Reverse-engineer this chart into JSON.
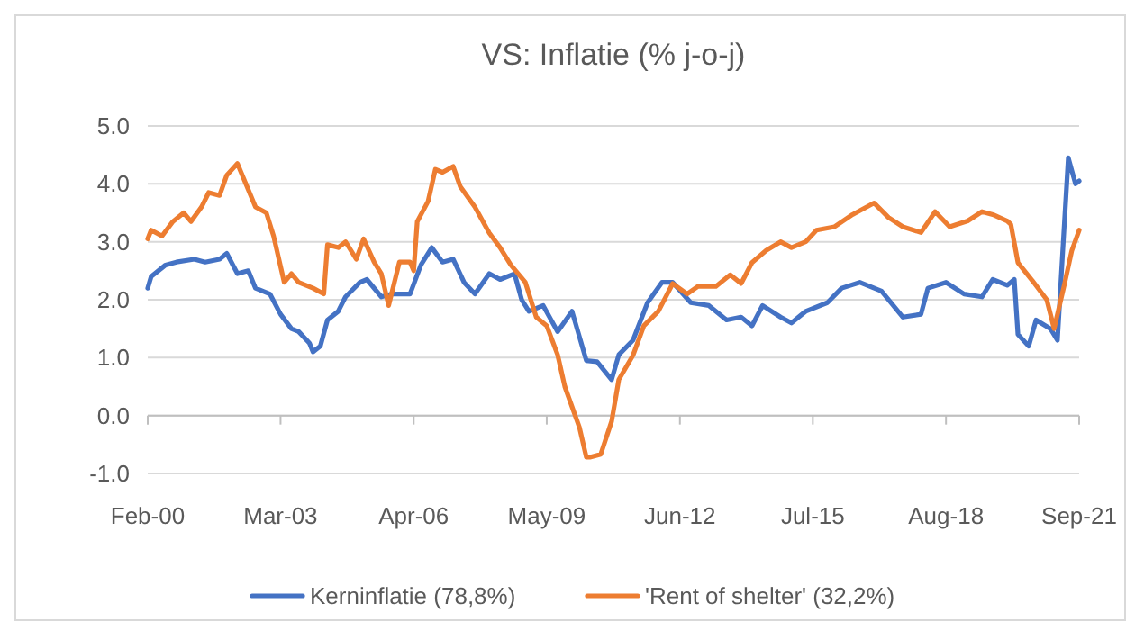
{
  "chart_data": {
    "type": "line",
    "title": "VS: Inflatie (% j-o-j)",
    "xlim": [
      "2000-02",
      "2021-09"
    ],
    "xticks": [
      {
        "value": "2000-02",
        "label": "Feb-00"
      },
      {
        "value": "2003-03",
        "label": "Mar-03"
      },
      {
        "value": "2006-04",
        "label": "Apr-06"
      },
      {
        "value": "2009-05",
        "label": "May-09"
      },
      {
        "value": "2012-06",
        "label": "Jun-12"
      },
      {
        "value": "2015-07",
        "label": "Jul-15"
      },
      {
        "value": "2018-08",
        "label": "Aug-18"
      },
      {
        "value": "2021-09",
        "label": "Sep-21"
      }
    ],
    "ylim": [
      -1,
      5
    ],
    "yticks": [
      {
        "value": -1,
        "label": "-1.0"
      },
      {
        "value": 0,
        "label": "0.0"
      },
      {
        "value": 1,
        "label": "1.0"
      },
      {
        "value": 2,
        "label": "2.0"
      },
      {
        "value": 3,
        "label": "3.0"
      },
      {
        "value": 4,
        "label": "4.0"
      },
      {
        "value": 5,
        "label": "5.0"
      }
    ],
    "grid": "y",
    "legend": "bottom",
    "marker": "none",
    "line_style": "solid",
    "series": [
      {
        "name": "Kerninflatie (78,8%)",
        "color": "#4472c4",
        "x": [
          "2000-02",
          "2000-03",
          "2000-07",
          "2000-10",
          "2001-03",
          "2001-06",
          "2001-10",
          "2001-12",
          "2002-03",
          "2002-06",
          "2002-08",
          "2002-12",
          "2003-03",
          "2003-06",
          "2003-08",
          "2003-11",
          "2003-12",
          "2004-02",
          "2004-04",
          "2004-07",
          "2004-09",
          "2005-01",
          "2005-03",
          "2005-07",
          "2005-10",
          "2006-03",
          "2006-06",
          "2006-09",
          "2006-12",
          "2007-03",
          "2007-06",
          "2007-09",
          "2008-01",
          "2008-04",
          "2008-08",
          "2008-10",
          "2008-12",
          "2009-04",
          "2009-08",
          "2009-12",
          "2010-04",
          "2010-07",
          "2010-11",
          "2011-01",
          "2011-05",
          "2011-09",
          "2012-01",
          "2012-04",
          "2012-09",
          "2013-02",
          "2013-07",
          "2013-11",
          "2014-02",
          "2014-05",
          "2014-10",
          "2015-01",
          "2015-05",
          "2015-11",
          "2016-03",
          "2016-08",
          "2017-02",
          "2017-08",
          "2018-01",
          "2018-03",
          "2018-08",
          "2019-01",
          "2019-06",
          "2019-09",
          "2020-01",
          "2020-03",
          "2020-04",
          "2020-07",
          "2020-09",
          "2021-01",
          "2021-03",
          "2021-06",
          "2021-08",
          "2021-09"
        ],
        "values": [
          2.2,
          2.4,
          2.6,
          2.65,
          2.7,
          2.65,
          2.7,
          2.8,
          2.45,
          2.5,
          2.2,
          2.1,
          1.75,
          1.5,
          1.45,
          1.25,
          1.1,
          1.2,
          1.65,
          1.8,
          2.05,
          2.3,
          2.35,
          2.05,
          2.1,
          2.1,
          2.6,
          2.9,
          2.65,
          2.7,
          2.3,
          2.1,
          2.45,
          2.35,
          2.45,
          2.0,
          1.8,
          1.9,
          1.45,
          1.8,
          0.95,
          0.93,
          0.62,
          1.05,
          1.3,
          1.95,
          2.3,
          2.3,
          1.95,
          1.9,
          1.65,
          1.7,
          1.55,
          1.9,
          1.7,
          1.6,
          1.8,
          1.95,
          2.2,
          2.3,
          2.15,
          1.7,
          1.75,
          2.2,
          2.3,
          2.1,
          2.05,
          2.35,
          2.25,
          2.35,
          1.4,
          1.2,
          1.65,
          1.5,
          1.3,
          4.45,
          4.0,
          4.05
        ]
      },
      {
        "name": "'Rent of shelter' (32,2%)",
        "color": "#ed7d31",
        "x": [
          "2000-02",
          "2000-03",
          "2000-06",
          "2000-09",
          "2000-12",
          "2001-02",
          "2001-05",
          "2001-07",
          "2001-10",
          "2001-12",
          "2002-03",
          "2002-05",
          "2002-08",
          "2002-11",
          "2003-01",
          "2003-04",
          "2003-06",
          "2003-08",
          "2003-12",
          "2004-03",
          "2004-04",
          "2004-07",
          "2004-09",
          "2004-12",
          "2005-02",
          "2005-05",
          "2005-07",
          "2005-09",
          "2005-12",
          "2006-03",
          "2006-04",
          "2006-05",
          "2006-08",
          "2006-10",
          "2006-12",
          "2007-03",
          "2007-05",
          "2007-09",
          "2008-01",
          "2008-04",
          "2008-07",
          "2008-11",
          "2009-02",
          "2009-05",
          "2009-08",
          "2009-10",
          "2010-02",
          "2010-04",
          "2010-05",
          "2010-08",
          "2010-11",
          "2011-01",
          "2011-05",
          "2011-08",
          "2011-12",
          "2012-04",
          "2012-08",
          "2012-11",
          "2013-04",
          "2013-08",
          "2013-11",
          "2014-02",
          "2014-06",
          "2014-10",
          "2015-01",
          "2015-05",
          "2015-08",
          "2016-01",
          "2016-06",
          "2016-12",
          "2017-04",
          "2017-08",
          "2018-01",
          "2018-05",
          "2018-09",
          "2019-02",
          "2019-06",
          "2019-09",
          "2020-01",
          "2020-02",
          "2020-04",
          "2020-08",
          "2020-12",
          "2021-02",
          "2021-05",
          "2021-07",
          "2021-09"
        ],
        "values": [
          3.05,
          3.2,
          3.1,
          3.35,
          3.5,
          3.35,
          3.6,
          3.85,
          3.8,
          4.15,
          4.35,
          4.05,
          3.6,
          3.5,
          3.1,
          2.3,
          2.45,
          2.3,
          2.2,
          2.1,
          2.95,
          2.9,
          3.0,
          2.7,
          3.05,
          2.65,
          2.45,
          1.9,
          2.65,
          2.65,
          2.5,
          3.35,
          3.7,
          4.25,
          4.2,
          4.3,
          3.95,
          3.6,
          3.15,
          2.9,
          2.6,
          2.3,
          1.7,
          1.55,
          1.05,
          0.5,
          -0.2,
          -0.72,
          -0.72,
          -0.67,
          -0.1,
          0.62,
          1.04,
          1.55,
          1.8,
          2.28,
          2.1,
          2.23,
          2.23,
          2.43,
          2.28,
          2.64,
          2.85,
          3.0,
          2.9,
          3.0,
          3.2,
          3.26,
          3.47,
          3.67,
          3.42,
          3.26,
          3.16,
          3.52,
          3.26,
          3.36,
          3.52,
          3.47,
          3.36,
          3.3,
          2.64,
          2.33,
          2.0,
          1.5,
          2.28,
          2.85,
          3.2
        ]
      }
    ]
  }
}
